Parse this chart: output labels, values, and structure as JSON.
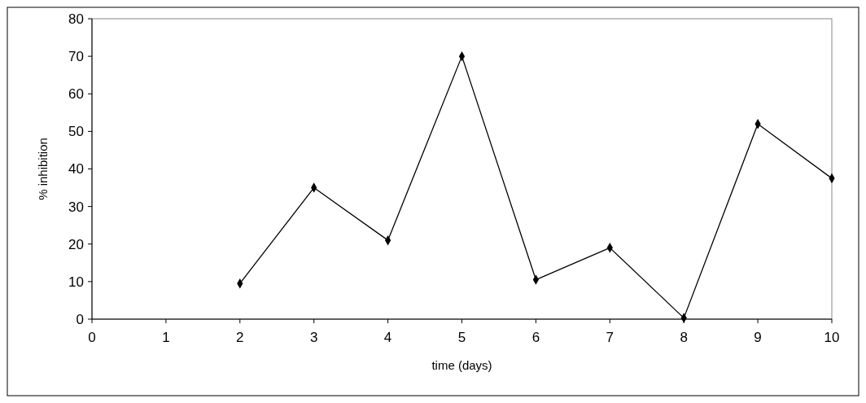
{
  "chart_data": {
    "type": "line",
    "xlabel": "time (days)",
    "ylabel": "% inhibition",
    "x": [
      2,
      3,
      4,
      5,
      6,
      7,
      8,
      9,
      10
    ],
    "series": [
      {
        "color": "#000000",
        "values": [
          9.5,
          35,
          21,
          70,
          10.5,
          19,
          0.3,
          52,
          37.5
        ]
      }
    ],
    "xlim": [
      0,
      10
    ],
    "xticks": [
      0,
      1,
      2,
      3,
      4,
      5,
      6,
      7,
      8,
      9,
      10
    ],
    "ylim": [
      0,
      80
    ],
    "yticks": [
      0,
      10,
      20,
      30,
      40,
      50,
      60,
      70,
      80
    ],
    "grid": false,
    "marker": "diamond",
    "line_style": "solid"
  }
}
